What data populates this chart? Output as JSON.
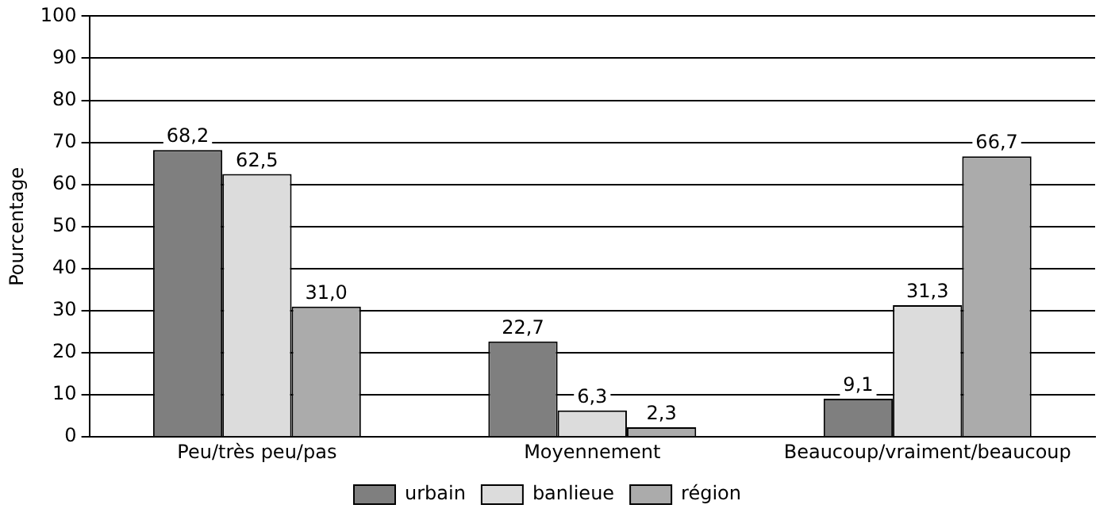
{
  "chart_data": {
    "type": "bar",
    "ylabel": "Pourcentage",
    "categories": [
      "Peu/très peu/pas",
      "Moyennement",
      "Beaucoup/vraiment/beaucoup"
    ],
    "series": [
      {
        "name": "urbain",
        "color": "#7f7f7f",
        "values": [
          68.2,
          22.7,
          9.1
        ],
        "value_labels": [
          "68,2",
          "22,7",
          "9,1"
        ]
      },
      {
        "name": "banlieue",
        "color": "#dcdcdc",
        "values": [
          62.5,
          6.3,
          31.3
        ],
        "value_labels": [
          "62,5",
          "6,3",
          "31,3"
        ]
      },
      {
        "name": "région",
        "color": "#ababab",
        "values": [
          31.0,
          2.3,
          66.7
        ],
        "value_labels": [
          "31,0",
          "2,3",
          "66,7"
        ]
      }
    ],
    "ylim": [
      0,
      100
    ],
    "yticks": [
      0,
      10,
      20,
      30,
      40,
      50,
      60,
      70,
      80,
      90,
      100
    ],
    "grid": "y",
    "legend": "bottom"
  }
}
